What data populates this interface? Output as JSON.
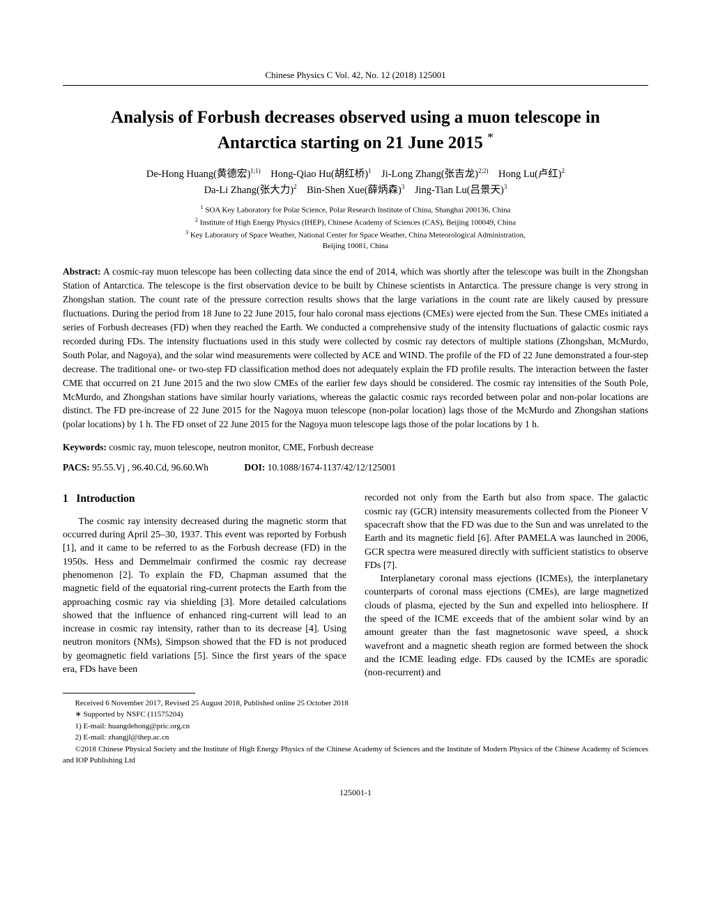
{
  "running_head": "Chinese Physics C    Vol. 42, No. 12 (2018) 125001",
  "title_line1": "Analysis of Forbush decreases observed using a muon telescope in",
  "title_line2": "Antarctica starting on 21 June 2015",
  "title_ast": "*",
  "authors_line1_parts": {
    "a1_name": "De-Hong Huang(黄德宏)",
    "a1_sup": "1;1)",
    "a2_name": "Hong-Qiao Hu(胡红桥)",
    "a2_sup": "1",
    "a3_name": "Ji-Long Zhang(张吉龙)",
    "a3_sup": "2;2)",
    "a4_name": "Hong Lu(卢红)",
    "a4_sup": "2"
  },
  "authors_line2_parts": {
    "a5_name": "Da-Li Zhang(张大力)",
    "a5_sup": "2",
    "a6_name": "Bin-Shen Xue(薛炳森)",
    "a6_sup": "3",
    "a7_name": "Jing-Tian Lu(吕景天)",
    "a7_sup": "3"
  },
  "affils": {
    "l1_sup": "1",
    "l1_text": " SOA Key Laboratory for Polar Science, Polar Research Institute of China, Shanghai 200136, China",
    "l2_sup": "2",
    "l2_text": " Institute of High Energy Physics (IHEP), Chinese Academy of Sciences (CAS), Beijing 100049, China",
    "l3_sup": "3",
    "l3_text": " Key Laboratory of Space Weather, National Center for Space Weather, China Meteorological Administration,",
    "l4_text": "Beijing 10081, China"
  },
  "abstract_label": "Abstract:",
  "abstract_text": "  A cosmic-ray muon telescope has been collecting data since the end of 2014, which was shortly after the telescope was built in the Zhongshan Station of Antarctica. The telescope is the first observation device to be built by Chinese scientists in Antarctica. The pressure change is very strong in Zhongshan station. The count rate of the pressure correction results shows that the large variations in the count rate are likely caused by pressure fluctuations. During the period from 18 June to 22 June 2015, four halo coronal mass ejections (CMEs) were ejected from the Sun. These CMEs initiated a series of Forbush decreases (FD) when they reached the Earth. We conducted a comprehensive study of the intensity fluctuations of galactic cosmic rays recorded during FDs. The intensity fluctuations used in this study were collected by cosmic ray detectors of multiple stations (Zhongshan, McMurdo, South Polar, and Nagoya), and the solar wind measurements were collected by ACE and WIND. The profile of the FD of 22 June demonstrated a four-step decrease. The traditional one- or two-step FD classification method does not adequately explain the FD profile results. The interaction between the faster CME that occurred on 21 June 2015 and the two slow CMEs of the earlier few days should be considered. The cosmic ray intensities of the South Pole, McMurdo, and Zhongshan stations have similar hourly variations, whereas the galactic cosmic rays recorded between polar and non-polar locations are distinct. The FD pre-increase of 22 June 2015 for the Nagoya muon telescope (non-polar location) lags those of the McMurdo and Zhongshan stations (polar locations) by 1 h. The FD onset of 22 June 2015 for the Nagoya muon telescope lags those of the polar locations by 1 h.",
  "keywords_label": "Keywords:",
  "keywords_text": "  cosmic ray, muon telescope, neutron monitor, CME, Forbush decrease",
  "pacs_label": "PACS:",
  "pacs_text": "  95.55.Vj , 96.40.Cd, 96.60.Wh",
  "doi_label": "DOI:",
  "doi_text": " 10.1088/1674-1137/42/12/125001",
  "section_num": "1",
  "section_title": "Introduction",
  "col1_p1": "The cosmic ray intensity decreased during the magnetic storm that occurred during April 25–30, 1937. This event was reported by Forbush [1], and it came to be referred to as the Forbush decrease (FD) in the 1950s. Hess and Demmelmair confirmed the cosmic ray decrease phenomenon [2]. To explain the FD, Chapman assumed that the magnetic field of the equatorial ring-current protects the Earth from the approaching cosmic ray via shielding [3]. More detailed calculations showed that the influence of enhanced ring-current will lead to an increase in cosmic ray intensity, rather than to its decrease [4]. Using neutron monitors (NMs), Simpson showed that the FD is not produced by geomagnetic field variations [5]. Since the first years of the space era, FDs have been",
  "col2_p1": "recorded not only from the Earth but also from space. The galactic cosmic ray (GCR) intensity measurements collected from the Pioneer V spacecraft show that the FD was due to the Sun and was unrelated to the Earth and its magnetic field [6]. After PAMELA was launched in 2006, GCR spectra were measured directly with sufficient statistics to observe FDs [7].",
  "col2_p2": "Interplanetary coronal mass ejections (ICMEs), the interplanetary counterparts of coronal mass ejections (CMEs), are large magnetized clouds of plasma, ejected by the Sun and expelled into heliosphere. If the speed of the ICME exceeds that of the ambient solar wind by an amount greater than the fast magnetosonic wave speed, a shock wavefront and a magnetic sheath region are formed between the shock and the ICME leading edge. FDs caused by the ICMEs are sporadic (non-recurrent) and",
  "footnotes": {
    "f1": "Received 6 November 2017, Revised 25 August 2018, Published online 25 October 2018",
    "f2": "∗ Supported by NSFC (11575204)",
    "f3": "1) E-mail: huangdehong@pric.org.cn",
    "f4": "2) E-mail: zhangjl@ihep.ac.cn",
    "f5": "©2018 Chinese Physical Society and the Institute of High Energy Physics of the Chinese Academy of Sciences and the Institute of Modern Physics of the Chinese Academy of Sciences and IOP Publishing Ltd"
  },
  "page_number": "125001-1"
}
